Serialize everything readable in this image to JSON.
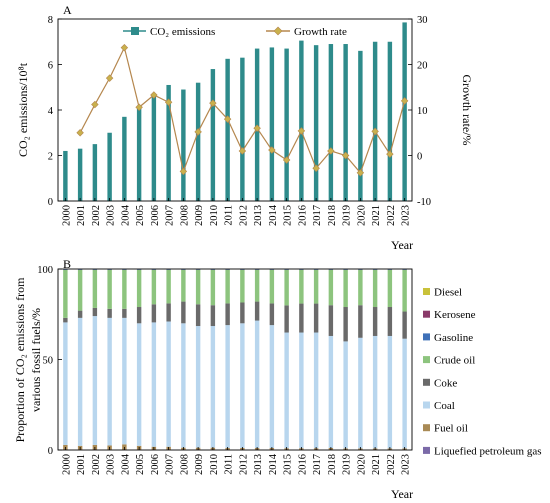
{
  "chart_data": [
    {
      "type": "bar+line",
      "panel_label": "A",
      "categories": [
        "2000",
        "2001",
        "2002",
        "2003",
        "2004",
        "2005",
        "2006",
        "2007",
        "2008",
        "2009",
        "2010",
        "2011",
        "2012",
        "2013",
        "2014",
        "2015",
        "2016",
        "2017",
        "2018",
        "2019",
        "2020",
        "2021",
        "2022",
        "2023"
      ],
      "series": [
        {
          "name": "CO₂ emissions",
          "kind": "bar",
          "axis": "left",
          "color": "#2e8b8b",
          "values": [
            2.2,
            2.3,
            2.5,
            3.0,
            3.7,
            4.1,
            4.6,
            5.1,
            4.9,
            5.2,
            5.8,
            6.25,
            6.3,
            6.7,
            6.75,
            6.7,
            7.05,
            6.85,
            6.9,
            6.9,
            6.6,
            7.0,
            7.0,
            7.85
          ]
        },
        {
          "name": "Growth rate",
          "kind": "line",
          "axis": "right",
          "color": "#b5874e",
          "marker_color": "#c9b14d",
          "values": [
            null,
            5.0,
            11.2,
            17.0,
            23.7,
            10.6,
            13.3,
            11.7,
            -3.5,
            5.2,
            11.5,
            8.0,
            1.0,
            6.0,
            1.2,
            -1.0,
            5.4,
            -2.8,
            1.0,
            0.0,
            -3.8,
            5.3,
            0.3,
            12.0
          ]
        }
      ],
      "ylabel_left": "CO₂ emissions/10⁸t",
      "ylabel_right": "Growth rate/%",
      "xlabel": "Year",
      "ylim_left": [
        0,
        8
      ],
      "yticks_left": [
        "0",
        "2",
        "4",
        "6",
        "8"
      ],
      "ylim_right": [
        -10,
        30
      ],
      "yticks_right": [
        "-10",
        "0",
        "10",
        "20",
        "30"
      ],
      "legend_placement": "top",
      "grid": false
    },
    {
      "type": "stacked-bar",
      "panel_label": "B",
      "categories": [
        "2000",
        "2001",
        "2002",
        "2003",
        "2004",
        "2005",
        "2006",
        "2007",
        "2008",
        "2009",
        "2010",
        "2011",
        "2012",
        "2013",
        "2014",
        "2015",
        "2016",
        "2017",
        "2018",
        "2019",
        "2020",
        "2021",
        "2022",
        "2023"
      ],
      "stack_order_bottom_to_top": [
        "Liquefied petroleum gas",
        "Fuel oil",
        "Coal",
        "Coke",
        "Crude oil",
        "Gasoline",
        "Kerosene",
        "Diesel"
      ],
      "series": [
        {
          "name": "Liquefied petroleum gas",
          "color": "#7b6aa8",
          "values": [
            0.3,
            0.3,
            0.3,
            0.3,
            0.3,
            0.3,
            0.3,
            0.3,
            0.3,
            0.3,
            0.3,
            0.3,
            0.3,
            0.3,
            0.3,
            0.3,
            0.3,
            0.3,
            0.3,
            0.3,
            0.3,
            0.3,
            0.3,
            0.3
          ]
        },
        {
          "name": "Fuel oil",
          "color": "#a98a55",
          "values": [
            2.5,
            2.0,
            2.5,
            2.2,
            2.8,
            2.0,
            1.5,
            1.5,
            1.0,
            1.0,
            1.0,
            0.8,
            0.8,
            0.8,
            0.8,
            0.7,
            0.7,
            0.7,
            0.8,
            0.6,
            0.6,
            0.6,
            0.6,
            0.6
          ]
        },
        {
          "name": "Coal",
          "color": "#b8d6ee",
          "values": [
            67.7,
            70.7,
            71.2,
            70.5,
            69.9,
            67.7,
            68.7,
            69.2,
            68.7,
            67.2,
            67.2,
            67.9,
            68.9,
            70.4,
            67.9,
            63.9,
            63.9,
            63.9,
            61.9,
            59.1,
            61.1,
            62.1,
            62.1,
            60.6
          ]
        },
        {
          "name": "Coke",
          "color": "#6a6a6a",
          "values": [
            2.5,
            4.0,
            4.5,
            5.0,
            5.0,
            9.0,
            10.0,
            10.0,
            12.0,
            12.0,
            11.5,
            12.0,
            11.5,
            10.5,
            12.0,
            15.0,
            16.0,
            16.0,
            17.0,
            19.0,
            18.0,
            16.0,
            16.0,
            15.0
          ]
        },
        {
          "name": "Crude oil",
          "color": "#8dc47e",
          "values": [
            26.5,
            22.5,
            21.0,
            21.5,
            21.5,
            20.5,
            19.0,
            18.5,
            17.5,
            19.0,
            19.5,
            18.5,
            18.0,
            17.5,
            18.5,
            19.6,
            18.6,
            18.6,
            19.5,
            20.5,
            19.5,
            20.5,
            20.5,
            23.0
          ]
        },
        {
          "name": "Gasoline",
          "color": "#3f71b8",
          "values": [
            0.2,
            0.2,
            0.2,
            0.2,
            0.2,
            0.2,
            0.2,
            0.2,
            0.2,
            0.2,
            0.2,
            0.2,
            0.2,
            0.2,
            0.2,
            0.2,
            0.2,
            0.2,
            0.2,
            0.2,
            0.2,
            0.2,
            0.2,
            0.2
          ]
        },
        {
          "name": "Kerosene",
          "color": "#8a3a6a",
          "values": [
            0.1,
            0.1,
            0.1,
            0.1,
            0.1,
            0.1,
            0.1,
            0.1,
            0.1,
            0.1,
            0.1,
            0.1,
            0.1,
            0.1,
            0.1,
            0.1,
            0.1,
            0.1,
            0.1,
            0.1,
            0.1,
            0.1,
            0.1,
            0.1
          ]
        },
        {
          "name": "Diesel",
          "color": "#c9c23a",
          "values": [
            0.2,
            0.2,
            0.2,
            0.2,
            0.2,
            0.2,
            0.2,
            0.2,
            0.2,
            0.2,
            0.2,
            0.2,
            0.2,
            0.2,
            0.2,
            0.2,
            0.2,
            0.2,
            0.2,
            0.2,
            0.2,
            0.2,
            0.2,
            0.2
          ]
        }
      ],
      "legend_order_top_to_bottom": [
        "Diesel",
        "Kerosene",
        "Gasoline",
        "Crude oil",
        "Coke",
        "Coal",
        "Fuel oil",
        "Liquefied petroleum gas"
      ],
      "ylabel_line1": "Proportion of CO₂ emissions from",
      "ylabel_line2": "various fossil fuels/%",
      "xlabel": "Year",
      "ylim": [
        0,
        100
      ],
      "yticks": [
        "0",
        "50",
        "100"
      ],
      "legend_placement": "right",
      "grid": false
    }
  ]
}
